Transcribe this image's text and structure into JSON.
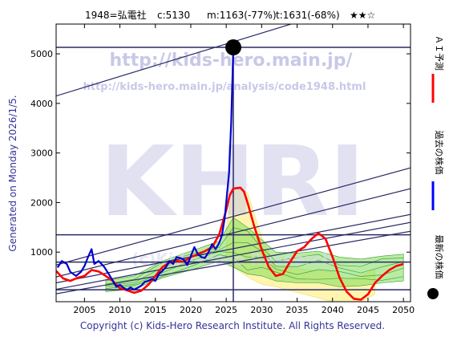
{
  "header": {
    "code_name": "1948=弘電社",
    "c_text": "c:5130",
    "m_text": "m:1163(-77%)",
    "t_text": "t:1631(-68%)",
    "stars": "★★☆"
  },
  "left_label": "Generated on Monday 2026/1/5.",
  "footer": "Copyright (c) Kids-Hero Research Institute. All Rights Reserved.",
  "watermarks": {
    "url": "http://kids-hero.main.jp/",
    "url2": "http://kids-hero.main.jp/analysis/code1948.html",
    "big": "KHRI",
    "faint": "(c)Kids-Hero Research"
  },
  "legend": [
    {
      "label": "ＡＩ予測",
      "color": "#ff0000",
      "marker": "line"
    },
    {
      "label": "過去の株価",
      "color": "#0000ff",
      "marker": "line"
    },
    {
      "label": "最新の株価",
      "color": "#000000",
      "marker": "dot"
    }
  ],
  "colors": {
    "ai_forecast": "#ff0000",
    "past_price": "#0000cc",
    "latest_dot": "#000000",
    "trend_lines": "#2a2a66",
    "band_green": "#7ddc5a",
    "band_yellow": "#fff39a",
    "watermark": "#c8c8e8",
    "text": "#000000",
    "meta_text": "#333399"
  },
  "chart_data": {
    "type": "line",
    "title": "1948=弘電社  c:5130  m:1163(-77%)  t:1631(-68%)  ★★☆",
    "xlim": [
      2001,
      2051
    ],
    "ylim": [
      0,
      5600
    ],
    "xticks": [
      2005,
      2010,
      2015,
      2020,
      2025,
      2030,
      2035,
      2040,
      2045,
      2050
    ],
    "yticks": [
      1000,
      2000,
      3000,
      4000,
      5000
    ],
    "grid": false,
    "legend_position": "right-outside",
    "latest_point": {
      "x": 2026.0,
      "y": 5130
    },
    "series": [
      {
        "name": "過去の株価",
        "kind": "line",
        "points": [
          [
            2001.2,
            690
          ],
          [
            2001.8,
            820
          ],
          [
            2002.5,
            760
          ],
          [
            2003.0,
            600
          ],
          [
            2003.8,
            520
          ],
          [
            2004.5,
            600
          ],
          [
            2005.0,
            720
          ],
          [
            2005.5,
            900
          ],
          [
            2006.0,
            1060
          ],
          [
            2006.4,
            760
          ],
          [
            2007.0,
            820
          ],
          [
            2007.8,
            700
          ],
          [
            2008.5,
            540
          ],
          [
            2009.0,
            420
          ],
          [
            2009.5,
            300
          ],
          [
            2010.0,
            340
          ],
          [
            2010.5,
            280
          ],
          [
            2011.0,
            240
          ],
          [
            2011.5,
            290
          ],
          [
            2012.0,
            240
          ],
          [
            2012.5,
            280
          ],
          [
            2013.0,
            320
          ],
          [
            2013.5,
            400
          ],
          [
            2014.0,
            420
          ],
          [
            2014.5,
            460
          ],
          [
            2015.0,
            420
          ],
          [
            2015.5,
            560
          ],
          [
            2016.0,
            620
          ],
          [
            2016.5,
            700
          ],
          [
            2017.0,
            820
          ],
          [
            2017.5,
            760
          ],
          [
            2018.0,
            900
          ],
          [
            2018.5,
            880
          ],
          [
            2019.0,
            850
          ],
          [
            2019.5,
            740
          ],
          [
            2020.0,
            920
          ],
          [
            2020.5,
            1100
          ],
          [
            2021.0,
            960
          ],
          [
            2021.5,
            900
          ],
          [
            2022.0,
            880
          ],
          [
            2022.5,
            1000
          ],
          [
            2023.0,
            1160
          ],
          [
            2023.5,
            1060
          ],
          [
            2024.0,
            1180
          ],
          [
            2024.4,
            1350
          ],
          [
            2024.8,
            1700
          ],
          [
            2025.1,
            2150
          ],
          [
            2025.4,
            2600
          ],
          [
            2025.7,
            3600
          ],
          [
            2025.9,
            4600
          ],
          [
            2026.0,
            5130
          ]
        ]
      },
      {
        "name": "ＡＩ予測",
        "kind": "line",
        "points": [
          [
            2001.0,
            620
          ],
          [
            2002.0,
            470
          ],
          [
            2003.0,
            420
          ],
          [
            2004.0,
            480
          ],
          [
            2005.0,
            520
          ],
          [
            2006.0,
            640
          ],
          [
            2007.0,
            610
          ],
          [
            2008.0,
            520
          ],
          [
            2009.0,
            420
          ],
          [
            2010.0,
            270
          ],
          [
            2011.0,
            230
          ],
          [
            2012.0,
            180
          ],
          [
            2013.0,
            220
          ],
          [
            2014.0,
            340
          ],
          [
            2015.0,
            520
          ],
          [
            2016.0,
            700
          ],
          [
            2017.0,
            790
          ],
          [
            2018.0,
            820
          ],
          [
            2019.0,
            810
          ],
          [
            2020.0,
            900
          ],
          [
            2021.0,
            960
          ],
          [
            2022.0,
            1020
          ],
          [
            2023.0,
            1100
          ],
          [
            2024.0,
            1350
          ],
          [
            2025.0,
            1850
          ],
          [
            2025.5,
            2150
          ],
          [
            2026.0,
            2280
          ],
          [
            2027.0,
            2300
          ],
          [
            2027.5,
            2220
          ],
          [
            2028.0,
            2000
          ],
          [
            2029.0,
            1500
          ],
          [
            2030.0,
            1050
          ],
          [
            2031.0,
            700
          ],
          [
            2032.0,
            520
          ],
          [
            2033.0,
            560
          ],
          [
            2034.0,
            800
          ],
          [
            2035.0,
            1020
          ],
          [
            2036.0,
            1100
          ],
          [
            2037.0,
            1260
          ],
          [
            2038.0,
            1380
          ],
          [
            2039.0,
            1270
          ],
          [
            2040.0,
            900
          ],
          [
            2041.0,
            480
          ],
          [
            2042.0,
            200
          ],
          [
            2043.0,
            60
          ],
          [
            2044.0,
            40
          ],
          [
            2045.0,
            150
          ],
          [
            2046.0,
            380
          ],
          [
            2047.0,
            520
          ],
          [
            2048.0,
            640
          ],
          [
            2049.0,
            720
          ],
          [
            2050.0,
            760
          ]
        ]
      },
      {
        "name": "",
        "kind": "trend_lines",
        "horizontal_levels": [
          5130,
          1350,
          800,
          240
        ],
        "sloped_segments": [
          [
            [
              2001,
              4150
            ],
            [
              2041,
              5900
            ]
          ],
          [
            [
              2001,
              740
            ],
            [
              2051,
              2700
            ]
          ],
          [
            [
              2001,
              500
            ],
            [
              2051,
              2280
            ]
          ],
          [
            [
              2001,
              380
            ],
            [
              2051,
              1760
            ]
          ],
          [
            [
              2001,
              250
            ],
            [
              2051,
              1600
            ]
          ],
          [
            [
              2001,
              160
            ],
            [
              2051,
              1420
            ]
          ]
        ]
      },
      {
        "name": "",
        "kind": "bands",
        "green_band": [
          [
            2008,
            200,
            420
          ],
          [
            2012,
            260,
            520
          ],
          [
            2016,
            480,
            820
          ],
          [
            2020,
            640,
            1020
          ],
          [
            2024,
            820,
            1220
          ],
          [
            2026,
            700,
            1700
          ],
          [
            2028,
            560,
            1500
          ],
          [
            2030,
            520,
            1250
          ],
          [
            2032,
            420,
            1000
          ],
          [
            2035,
            380,
            980
          ],
          [
            2038,
            380,
            1020
          ],
          [
            2041,
            300,
            900
          ],
          [
            2044,
            320,
            860
          ],
          [
            2047,
            380,
            920
          ],
          [
            2050,
            420,
            960
          ]
        ],
        "yellow_band": [
          [
            2025,
            900,
            1500
          ],
          [
            2026,
            700,
            2300
          ],
          [
            2028,
            500,
            2200
          ],
          [
            2030,
            350,
            1300
          ],
          [
            2032,
            300,
            700
          ],
          [
            2040,
            0,
            600
          ],
          [
            2042,
            0,
            450
          ],
          [
            2044,
            0,
            520
          ],
          [
            2046,
            150,
            650
          ]
        ]
      }
    ]
  }
}
